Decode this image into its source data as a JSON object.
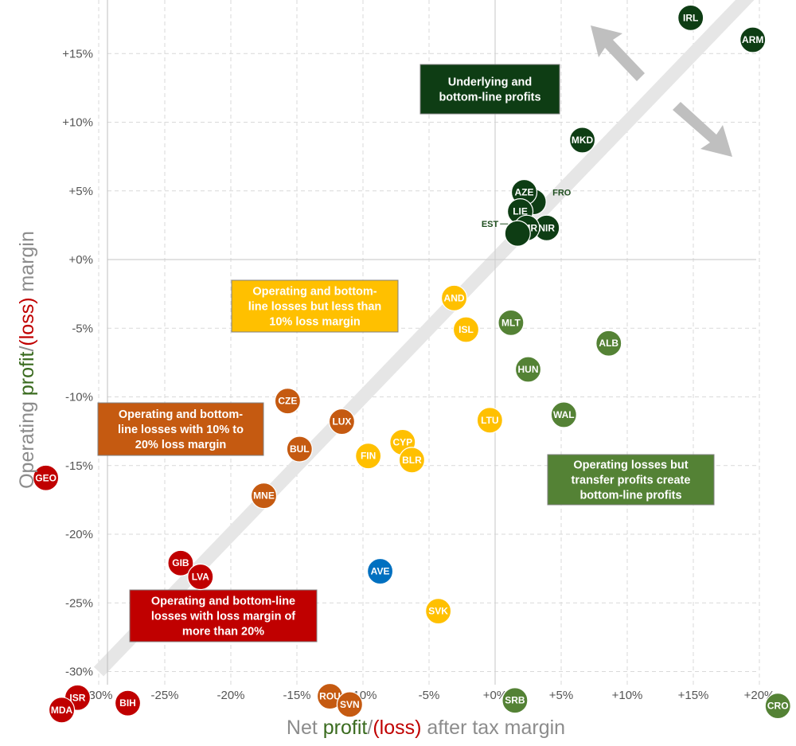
{
  "colors": {
    "dark_green": "#0e3d14",
    "mid_green": "#548235",
    "yellow": "#ffc000",
    "orange": "#c55a11",
    "red": "#c00000",
    "blue": "#0070c0",
    "grey_axis_title": "#8c8c8c",
    "text_green": "#3a6b1f",
    "text_red": "#c00000"
  },
  "axis_titles": {
    "x": {
      "pre": "Net ",
      "green": "profit",
      "mid": "/",
      "red": "(loss)",
      "post": " after tax margin"
    },
    "y": {
      "pre": "Operating ",
      "green": "profit",
      "mid": "/",
      "red": "(loss)",
      "post": " margin"
    }
  },
  "boxes": [
    {
      "lines": [
        "Underlying and",
        "bottom-line profits"
      ],
      "color": "dark_green",
      "text_color": "#ffffff"
    },
    {
      "lines": [
        "Operating and bottom-",
        "line losses but less than",
        "10% loss margin"
      ],
      "color": "yellow",
      "text_color": "#ffffff"
    },
    {
      "lines": [
        "Operating and bottom-",
        "line losses with 10% to",
        "20% loss margin"
      ],
      "color": "orange",
      "text_color": "#ffffff"
    },
    {
      "lines": [
        "Operating losses but",
        "transfer profits create",
        "bottom-line profits"
      ],
      "color": "mid_green",
      "text_color": "#ffffff"
    },
    {
      "lines": [
        "Operating and bottom-line",
        "losses with loss margin of",
        "more than 20%"
      ],
      "color": "red",
      "text_color": "#ffffff"
    }
  ],
  "chart_data": {
    "type": "scatter",
    "xlabel": "Net profit/(loss) after tax margin",
    "ylabel": "Operating profit/(loss) margin",
    "xlim": [
      -33,
      21
    ],
    "ylim": [
      -30.5,
      18.5
    ],
    "x_ticks": [
      -30,
      -25,
      -20,
      -15,
      -10,
      -5,
      0,
      5,
      10,
      15,
      20
    ],
    "x_tick_labels": [
      "-30%",
      "-25%",
      "-20%",
      "-15%",
      "-10%",
      "-5%",
      "+0%",
      "+5%",
      "+10%",
      "+15%",
      "+20%"
    ],
    "y_ticks": [
      15,
      10,
      5,
      0,
      -5,
      -10,
      -15,
      -20,
      -25,
      -30
    ],
    "y_tick_labels": [
      "+15%",
      "+10%",
      "+5%",
      "+0%",
      "-5%",
      "-10%",
      "-15%",
      "-20%",
      "-25%",
      "-30%"
    ],
    "grid": true,
    "diagonal_reference_line": true,
    "points": [
      {
        "label": "IRL",
        "x": 14.8,
        "y": 17.6,
        "group": "dark_green"
      },
      {
        "label": "ARM",
        "x": 19.5,
        "y": 16.0,
        "group": "dark_green"
      },
      {
        "label": "MKD",
        "x": 6.6,
        "y": 8.7,
        "group": "dark_green"
      },
      {
        "label": "FRO",
        "x": 2.9,
        "y": 4.2,
        "group": "dark_green",
        "ext": true
      },
      {
        "label": "AZE",
        "x": 2.2,
        "y": 4.9,
        "group": "dark_green"
      },
      {
        "label": "LIE",
        "x": 1.9,
        "y": 3.5,
        "group": "dark_green"
      },
      {
        "label": "NIR",
        "x": 3.9,
        "y": 2.3,
        "group": "dark_green"
      },
      {
        "label": "SMR",
        "x": 2.4,
        "y": 2.3,
        "group": "dark_green"
      },
      {
        "label": "EST",
        "x": 1.7,
        "y": 1.9,
        "group": "dark_green",
        "ext": true
      },
      {
        "label": "AND",
        "x": -3.1,
        "y": -2.8,
        "group": "yellow"
      },
      {
        "label": "ISL",
        "x": -2.2,
        "y": -5.1,
        "group": "yellow"
      },
      {
        "label": "LTU",
        "x": -0.4,
        "y": -11.7,
        "group": "yellow"
      },
      {
        "label": "CYP",
        "x": -7.0,
        "y": -13.3,
        "group": "yellow"
      },
      {
        "label": "FIN",
        "x": -9.6,
        "y": -14.3,
        "group": "yellow"
      },
      {
        "label": "BLR",
        "x": -6.3,
        "y": -14.6,
        "group": "yellow"
      },
      {
        "label": "SVK",
        "x": -4.3,
        "y": -25.6,
        "group": "yellow"
      },
      {
        "label": "MLT",
        "x": 1.2,
        "y": -4.6,
        "group": "mid_green"
      },
      {
        "label": "ALB",
        "x": 8.6,
        "y": -6.1,
        "group": "mid_green"
      },
      {
        "label": "HUN",
        "x": 2.5,
        "y": -8.0,
        "group": "mid_green"
      },
      {
        "label": "WAL",
        "x": 5.2,
        "y": -11.3,
        "group": "mid_green"
      },
      {
        "label": "SRB",
        "x": 1.5,
        "y": -32.1,
        "group": "mid_green"
      },
      {
        "label": "CRO",
        "x": 21.4,
        "y": -32.5,
        "group": "mid_green"
      },
      {
        "label": "CZE",
        "x": -15.7,
        "y": -10.3,
        "group": "orange"
      },
      {
        "label": "LUX",
        "x": -11.6,
        "y": -11.8,
        "group": "orange"
      },
      {
        "label": "BUL",
        "x": -14.8,
        "y": -13.8,
        "group": "orange"
      },
      {
        "label": "MNE",
        "x": -17.5,
        "y": -17.2,
        "group": "orange"
      },
      {
        "label": "ROU",
        "x": -12.5,
        "y": -31.8,
        "group": "orange"
      },
      {
        "label": "SVN",
        "x": -11.0,
        "y": -32.4,
        "group": "orange"
      },
      {
        "label": "GEO",
        "x": -34.0,
        "y": -15.9,
        "group": "red"
      },
      {
        "label": "GIB",
        "x": -23.8,
        "y": -22.1,
        "group": "red"
      },
      {
        "label": "LVA",
        "x": -22.3,
        "y": -23.1,
        "group": "red"
      },
      {
        "label": "ISR",
        "x": -31.6,
        "y": -31.9,
        "group": "red"
      },
      {
        "label": "BIH",
        "x": -27.8,
        "y": -32.3,
        "group": "red"
      },
      {
        "label": "MDA",
        "x": -32.8,
        "y": -32.8,
        "group": "red"
      },
      {
        "label": "AVE",
        "x": -8.7,
        "y": -22.7,
        "group": "blue"
      }
    ]
  }
}
